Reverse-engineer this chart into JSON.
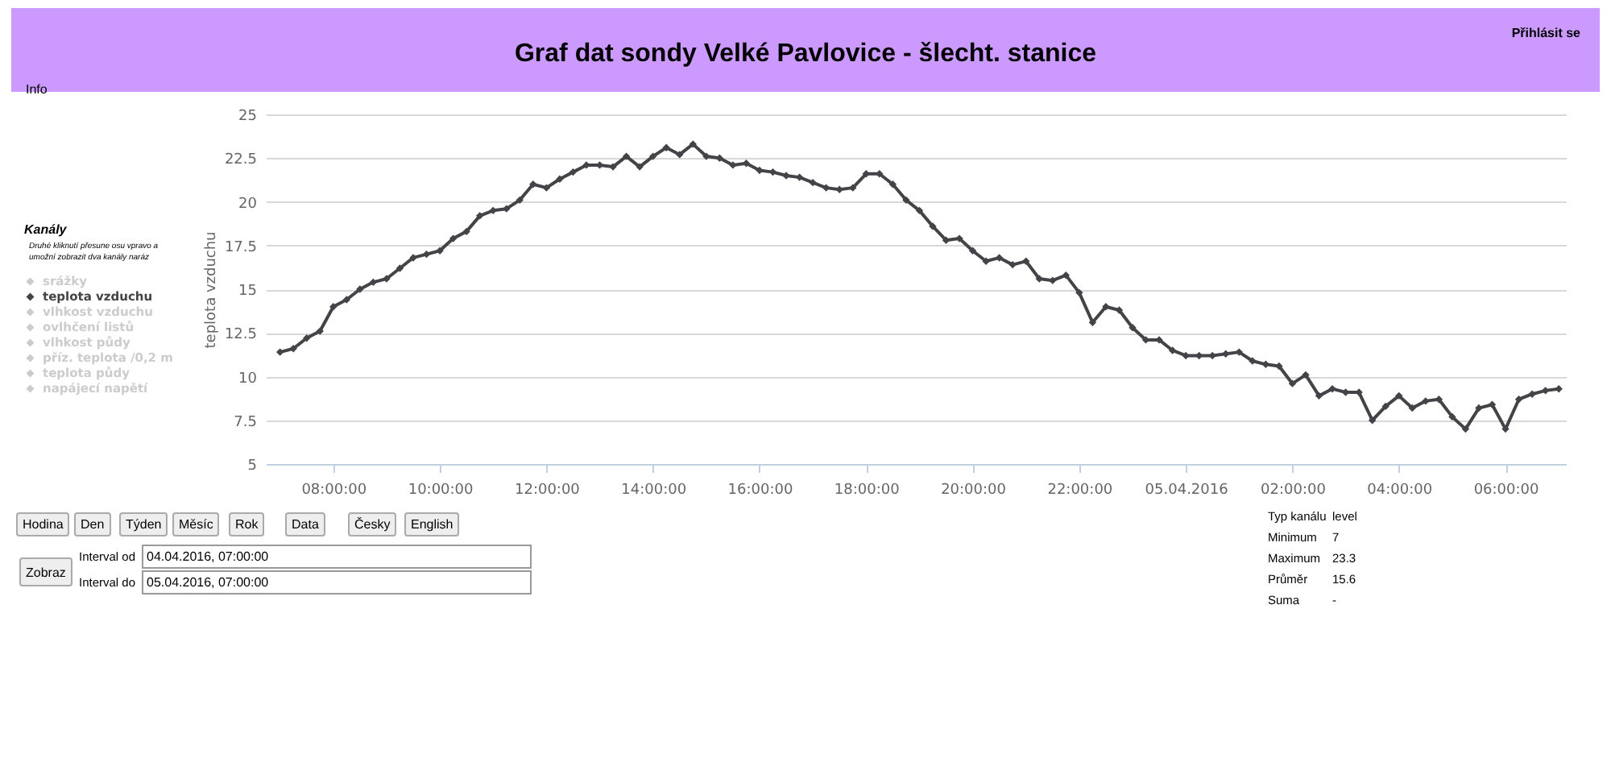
{
  "chart_data": {
    "type": "line",
    "title": "Graf dat sondy Velké Pavlovice - šlecht. stanice",
    "ylabel": "teplota vzduchu",
    "legend_title": "Kanály",
    "legend": "left",
    "marker": "diamond",
    "line_style": "solid",
    "grid": "y",
    "x": [
      "2016-04-04T07:00",
      "2016-04-04T07:15",
      "2016-04-04T07:30",
      "2016-04-04T07:45",
      "2016-04-04T08:00",
      "2016-04-04T08:15",
      "2016-04-04T08:30",
      "2016-04-04T08:45",
      "2016-04-04T09:00",
      "2016-04-04T09:15",
      "2016-04-04T09:30",
      "2016-04-04T09:45",
      "2016-04-04T10:00",
      "2016-04-04T10:15",
      "2016-04-04T10:30",
      "2016-04-04T10:45",
      "2016-04-04T11:00",
      "2016-04-04T11:15",
      "2016-04-04T11:30",
      "2016-04-04T11:45",
      "2016-04-04T12:00",
      "2016-04-04T12:15",
      "2016-04-04T12:30",
      "2016-04-04T12:45",
      "2016-04-04T13:00",
      "2016-04-04T13:15",
      "2016-04-04T13:30",
      "2016-04-04T13:45",
      "2016-04-04T14:00",
      "2016-04-04T14:15",
      "2016-04-04T14:30",
      "2016-04-04T14:45",
      "2016-04-04T15:00",
      "2016-04-04T15:15",
      "2016-04-04T15:30",
      "2016-04-04T15:45",
      "2016-04-04T16:00",
      "2016-04-04T16:15",
      "2016-04-04T16:30",
      "2016-04-04T16:45",
      "2016-04-04T17:00",
      "2016-04-04T17:15",
      "2016-04-04T17:30",
      "2016-04-04T17:45",
      "2016-04-04T18:00",
      "2016-04-04T18:15",
      "2016-04-04T18:30",
      "2016-04-04T18:45",
      "2016-04-04T19:00",
      "2016-04-04T19:15",
      "2016-04-04T19:30",
      "2016-04-04T19:45",
      "2016-04-04T20:00",
      "2016-04-04T20:15",
      "2016-04-04T20:30",
      "2016-04-04T20:45",
      "2016-04-04T21:00",
      "2016-04-04T21:15",
      "2016-04-04T21:30",
      "2016-04-04T21:45",
      "2016-04-04T22:00",
      "2016-04-04T22:15",
      "2016-04-04T22:30",
      "2016-04-04T22:45",
      "2016-04-04T23:00",
      "2016-04-04T23:15",
      "2016-04-04T23:30",
      "2016-04-04T23:45",
      "2016-04-05T00:00",
      "2016-04-05T00:15",
      "2016-04-05T00:30",
      "2016-04-05T00:45",
      "2016-04-05T01:00",
      "2016-04-05T01:15",
      "2016-04-05T01:30",
      "2016-04-05T01:45",
      "2016-04-05T02:00",
      "2016-04-05T02:15",
      "2016-04-05T02:30",
      "2016-04-05T02:45",
      "2016-04-05T03:00",
      "2016-04-05T03:15",
      "2016-04-05T03:30",
      "2016-04-05T03:45",
      "2016-04-05T04:00",
      "2016-04-05T04:15",
      "2016-04-05T04:30",
      "2016-04-05T04:45",
      "2016-04-05T05:00",
      "2016-04-05T05:15",
      "2016-04-05T05:30",
      "2016-04-05T05:45",
      "2016-04-05T06:00",
      "2016-04-05T06:15",
      "2016-04-05T06:30",
      "2016-04-05T06:45",
      "2016-04-05T07:00"
    ],
    "xlim": [
      "2016-04-04T06:44",
      "2016-04-05T07:08"
    ],
    "xticks": [
      {
        "value": "2016-04-04T08:00",
        "label": "08:00:00"
      },
      {
        "value": "2016-04-04T10:00",
        "label": "10:00:00"
      },
      {
        "value": "2016-04-04T12:00",
        "label": "12:00:00"
      },
      {
        "value": "2016-04-04T14:00",
        "label": "14:00:00"
      },
      {
        "value": "2016-04-04T16:00",
        "label": "16:00:00"
      },
      {
        "value": "2016-04-04T18:00",
        "label": "18:00:00"
      },
      {
        "value": "2016-04-04T20:00",
        "label": "20:00:00"
      },
      {
        "value": "2016-04-04T22:00",
        "label": "22:00:00"
      },
      {
        "value": "2016-04-05T00:00",
        "label": "05.04.2016"
      },
      {
        "value": "2016-04-05T02:00",
        "label": "02:00:00"
      },
      {
        "value": "2016-04-05T04:00",
        "label": "04:00:00"
      },
      {
        "value": "2016-04-05T06:00",
        "label": "06:00:00"
      }
    ],
    "ylim": [
      5,
      25
    ],
    "yticks": [
      5,
      7.5,
      10,
      12.5,
      15,
      17.5,
      20,
      22.5,
      25
    ],
    "series": [
      {
        "name": "srážky",
        "color": "#cccccc",
        "values": [
          null,
          null,
          null,
          null,
          null,
          null,
          null,
          null,
          null,
          null,
          null,
          null,
          null,
          null,
          null,
          null,
          null,
          null,
          null,
          null,
          null,
          null,
          null,
          null,
          null,
          null,
          null,
          null,
          null,
          null,
          null,
          null,
          null,
          null,
          null,
          null,
          null,
          null,
          null,
          null,
          null,
          null,
          null,
          null,
          null,
          null,
          null,
          null,
          null,
          null,
          null,
          null,
          null,
          null,
          null,
          null,
          null,
          null,
          null,
          null,
          null,
          null,
          null,
          null,
          null,
          null,
          null,
          null,
          null,
          null,
          null,
          null,
          null,
          null,
          null,
          null,
          null,
          null,
          null,
          null,
          null,
          null,
          null,
          null,
          null,
          null,
          null,
          null,
          null,
          null,
          null,
          null,
          null,
          null,
          null,
          null,
          null
        ]
      },
      {
        "name": "teplota vzduchu",
        "color": "#434348",
        "values": [
          11.4,
          11.6,
          12.2,
          12.6,
          14.0,
          14.4,
          15.0,
          15.4,
          15.6,
          16.2,
          16.8,
          17.0,
          17.2,
          17.9,
          18.3,
          19.2,
          19.5,
          19.6,
          20.1,
          21.0,
          20.8,
          21.3,
          21.7,
          22.1,
          22.1,
          22.0,
          22.6,
          22.0,
          22.6,
          23.1,
          22.7,
          23.3,
          22.6,
          22.5,
          22.1,
          22.2,
          21.8,
          21.7,
          21.5,
          21.4,
          21.1,
          20.8,
          20.7,
          20.8,
          21.6,
          21.6,
          21.0,
          20.1,
          19.5,
          18.6,
          17.8,
          17.9,
          17.2,
          16.6,
          16.8,
          16.4,
          16.6,
          15.6,
          15.5,
          15.8,
          14.8,
          13.1,
          14.0,
          13.8,
          12.8,
          12.1,
          12.1,
          11.5,
          11.2,
          11.2,
          11.2,
          11.3,
          11.4,
          10.9,
          10.7,
          10.6,
          9.6,
          10.1,
          8.9,
          9.3,
          9.1,
          9.1,
          7.5,
          8.3,
          8.9,
          8.2,
          8.6,
          8.7,
          7.7,
          7.0,
          8.2,
          8.4,
          7.0,
          8.7,
          9.0,
          9.2,
          9.3
        ]
      },
      {
        "name": "vlhkost vzduchu",
        "color": "#cccccc",
        "values": [
          null,
          null,
          null,
          null,
          null,
          null,
          null,
          null,
          null,
          null,
          null,
          null,
          null,
          null,
          null,
          null,
          null,
          null,
          null,
          null,
          null,
          null,
          null,
          null,
          null,
          null,
          null,
          null,
          null,
          null,
          null,
          null,
          null,
          null,
          null,
          null,
          null,
          null,
          null,
          null,
          null,
          null,
          null,
          null,
          null,
          null,
          null,
          null,
          null,
          null,
          null,
          null,
          null,
          null,
          null,
          null,
          null,
          null,
          null,
          null,
          null,
          null,
          null,
          null,
          null,
          null,
          null,
          null,
          null,
          null,
          null,
          null,
          null,
          null,
          null,
          null,
          null,
          null,
          null,
          null,
          null,
          null,
          null,
          null,
          null,
          null,
          null,
          null,
          null,
          null,
          null,
          null,
          null,
          null,
          null,
          null,
          null
        ]
      },
      {
        "name": "ovlhčení listů",
        "color": "#cccccc",
        "values": [
          null,
          null,
          null,
          null,
          null,
          null,
          null,
          null,
          null,
          null,
          null,
          null,
          null,
          null,
          null,
          null,
          null,
          null,
          null,
          null,
          null,
          null,
          null,
          null,
          null,
          null,
          null,
          null,
          null,
          null,
          null,
          null,
          null,
          null,
          null,
          null,
          null,
          null,
          null,
          null,
          null,
          null,
          null,
          null,
          null,
          null,
          null,
          null,
          null,
          null,
          null,
          null,
          null,
          null,
          null,
          null,
          null,
          null,
          null,
          null,
          null,
          null,
          null,
          null,
          null,
          null,
          null,
          null,
          null,
          null,
          null,
          null,
          null,
          null,
          null,
          null,
          null,
          null,
          null,
          null,
          null,
          null,
          null,
          null,
          null,
          null,
          null,
          null,
          null,
          null,
          null,
          null,
          null,
          null,
          null,
          null,
          null
        ]
      },
      {
        "name": "vlhkost půdy",
        "color": "#cccccc",
        "values": [
          null,
          null,
          null,
          null,
          null,
          null,
          null,
          null,
          null,
          null,
          null,
          null,
          null,
          null,
          null,
          null,
          null,
          null,
          null,
          null,
          null,
          null,
          null,
          null,
          null,
          null,
          null,
          null,
          null,
          null,
          null,
          null,
          null,
          null,
          null,
          null,
          null,
          null,
          null,
          null,
          null,
          null,
          null,
          null,
          null,
          null,
          null,
          null,
          null,
          null,
          null,
          null,
          null,
          null,
          null,
          null,
          null,
          null,
          null,
          null,
          null,
          null,
          null,
          null,
          null,
          null,
          null,
          null,
          null,
          null,
          null,
          null,
          null,
          null,
          null,
          null,
          null,
          null,
          null,
          null,
          null,
          null,
          null,
          null,
          null,
          null,
          null,
          null,
          null,
          null,
          null,
          null,
          null,
          null,
          null,
          null,
          null
        ]
      },
      {
        "name": "příz. teplota /0,2 m",
        "color": "#cccccc",
        "values": [
          null,
          null,
          null,
          null,
          null,
          null,
          null,
          null,
          null,
          null,
          null,
          null,
          null,
          null,
          null,
          null,
          null,
          null,
          null,
          null,
          null,
          null,
          null,
          null,
          null,
          null,
          null,
          null,
          null,
          null,
          null,
          null,
          null,
          null,
          null,
          null,
          null,
          null,
          null,
          null,
          null,
          null,
          null,
          null,
          null,
          null,
          null,
          null,
          null,
          null,
          null,
          null,
          null,
          null,
          null,
          null,
          null,
          null,
          null,
          null,
          null,
          null,
          null,
          null,
          null,
          null,
          null,
          null,
          null,
          null,
          null,
          null,
          null,
          null,
          null,
          null,
          null,
          null,
          null,
          null,
          null,
          null,
          null,
          null,
          null,
          null,
          null,
          null,
          null,
          null,
          null,
          null,
          null,
          null,
          null,
          null,
          null
        ]
      },
      {
        "name": "teplota půdy",
        "color": "#cccccc",
        "values": [
          null,
          null,
          null,
          null,
          null,
          null,
          null,
          null,
          null,
          null,
          null,
          null,
          null,
          null,
          null,
          null,
          null,
          null,
          null,
          null,
          null,
          null,
          null,
          null,
          null,
          null,
          null,
          null,
          null,
          null,
          null,
          null,
          null,
          null,
          null,
          null,
          null,
          null,
          null,
          null,
          null,
          null,
          null,
          null,
          null,
          null,
          null,
          null,
          null,
          null,
          null,
          null,
          null,
          null,
          null,
          null,
          null,
          null,
          null,
          null,
          null,
          null,
          null,
          null,
          null,
          null,
          null,
          null,
          null,
          null,
          null,
          null,
          null,
          null,
          null,
          null,
          null,
          null,
          null,
          null,
          null,
          null,
          null,
          null,
          null,
          null,
          null,
          null,
          null,
          null,
          null,
          null,
          null,
          null,
          null,
          null,
          null
        ]
      },
      {
        "name": "napájecí napětí",
        "color": "#cccccc",
        "values": [
          null,
          null,
          null,
          null,
          null,
          null,
          null,
          null,
          null,
          null,
          null,
          null,
          null,
          null,
          null,
          null,
          null,
          null,
          null,
          null,
          null,
          null,
          null,
          null,
          null,
          null,
          null,
          null,
          null,
          null,
          null,
          null,
          null,
          null,
          null,
          null,
          null,
          null,
          null,
          null,
          null,
          null,
          null,
          null,
          null,
          null,
          null,
          null,
          null,
          null,
          null,
          null,
          null,
          null,
          null,
          null,
          null,
          null,
          null,
          null,
          null,
          null,
          null,
          null,
          null,
          null,
          null,
          null,
          null,
          null,
          null,
          null,
          null,
          null,
          null,
          null,
          null,
          null,
          null,
          null,
          null,
          null,
          null,
          null,
          null,
          null,
          null,
          null,
          null,
          null,
          null,
          null,
          null,
          null,
          null,
          null,
          null
        ]
      }
    ],
    "annotations": [
      "Info",
      "Přihlásit se",
      "Druhé kliknutí přesune osu vpravo a umožní zobrazit dva kanály naráz",
      "Hodina",
      "Den",
      "Týden",
      "Měsíc",
      "Rok",
      "Data",
      "Česky",
      "English",
      "Zobraz",
      "Interval od",
      "04.04.2016, 07:00:00",
      "Interval do",
      "05.04.2016, 07:00:00",
      "Typ kanálu",
      "level",
      "Minimum",
      "7",
      "Maximum",
      "23.3",
      "Průměr",
      "15.6",
      "Suma",
      "-"
    ]
  }
}
